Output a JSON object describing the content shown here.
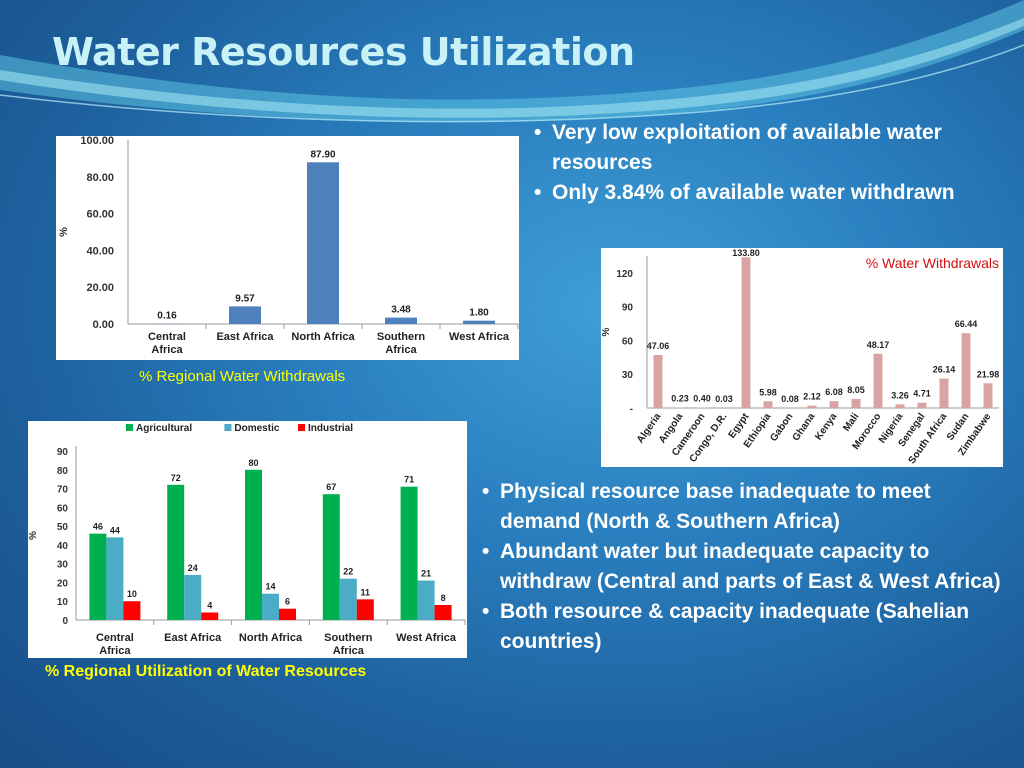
{
  "slide": {
    "title": "Water Resources Utilization",
    "top_bullets": [
      "Very low exploitation of available water resources",
      "Only 3.84% of available water withdrawn"
    ],
    "bottom_bullets": [
      "Physical resource base inadequate to meet demand (North & Southern Africa)",
      "Abundant water but inadequate capacity to withdraw (Central and parts of East  & West Africa)",
      "Both resource & capacity inadequate (Sahelian countries)"
    ],
    "captions": {
      "regional_withdrawals": "% Regional Water Withdrawals",
      "regional_utilization": "% Regional Utilization of Water Resources"
    },
    "colors": {
      "title": "#c9f2f7",
      "caption_yellow": "#ffff00",
      "caption_red": "#d01010",
      "bar_blue": "#4f81bd",
      "bar_pink": "#d9a3a3",
      "agricultural": "#00b050",
      "domestic": "#4bacc6",
      "industrial": "#ff0000"
    }
  },
  "chart_data": [
    {
      "type": "bar",
      "categories": [
        "Central Africa",
        "East Africa",
        "North Africa",
        "Southern Africa",
        "West Africa"
      ],
      "values": [
        0.16,
        9.57,
        87.9,
        3.48,
        1.8
      ],
      "value_labels": [
        "0.16",
        "9.57",
        "87.90",
        "3.48",
        "1.80"
      ],
      "ylabel": "%",
      "ylim": [
        0,
        100
      ],
      "yticks": [
        "0.00",
        "20.00",
        "40.00",
        "60.00",
        "80.00",
        "100.00"
      ],
      "grid": false,
      "title": ""
    },
    {
      "type": "bar",
      "title": "% Water Withdrawals",
      "categories": [
        "Algeria",
        "Angola",
        "Cameroon",
        "Congo, D.R.",
        "Egypt",
        "Ethiopia",
        "Gabon",
        "Ghana",
        "Kenya",
        "Mali",
        "Morocco",
        "Nigeria",
        "Senegal",
        "South Africa",
        "Sudan",
        "Zimbabwe"
      ],
      "values": [
        47.06,
        0.23,
        0.4,
        0.03,
        133.8,
        5.98,
        0.08,
        2.12,
        6.08,
        8.05,
        48.17,
        3.26,
        4.71,
        26.14,
        66.44,
        21.98
      ],
      "value_labels": [
        "47.06",
        "0.23",
        "0.40",
        "0.03",
        "133.80",
        "5.98",
        "0.08",
        "2.12",
        "6.08",
        "8.05",
        "48.17",
        "3.26",
        "4.71",
        "26.14",
        "66.44",
        "21.98"
      ],
      "ylabel": "%",
      "ylim": [
        0,
        135
      ],
      "yticks": [
        "-",
        "30",
        "60",
        "90",
        "120"
      ],
      "grid": false
    },
    {
      "type": "bar",
      "categories": [
        "Central Africa",
        "East Africa",
        "North Africa",
        "Southern Africa",
        "West Africa"
      ],
      "series": [
        {
          "name": "Agricultural",
          "values": [
            46,
            72,
            80,
            67,
            71
          ]
        },
        {
          "name": "Domestic",
          "values": [
            44,
            24,
            14,
            22,
            21
          ]
        },
        {
          "name": "Industrial",
          "values": [
            10,
            4,
            6,
            11,
            8
          ]
        }
      ],
      "ylabel": "%",
      "ylim": [
        0,
        90
      ],
      "yticks": [
        "0",
        "10",
        "20",
        "30",
        "40",
        "50",
        "60",
        "70",
        "80",
        "90"
      ],
      "legend": "top",
      "grid": false,
      "title": ""
    }
  ]
}
